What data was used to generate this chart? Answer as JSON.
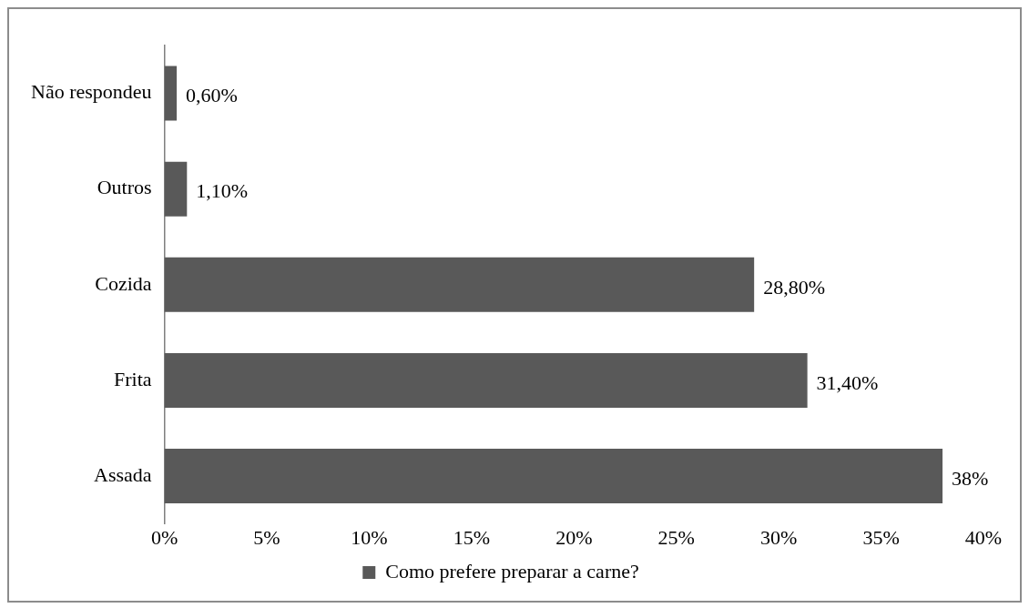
{
  "chart_data": {
    "type": "bar",
    "orientation": "horizontal",
    "categories": [
      "Não respondeu",
      "Outros",
      "Cozida",
      "Frita",
      "Assada"
    ],
    "series": [
      {
        "name": "Como prefere preparar a carne?",
        "color": "#595959",
        "values": [
          0.6,
          1.1,
          28.8,
          31.4,
          38
        ],
        "value_labels": [
          "0,60%",
          "1,10%",
          "28,80%",
          "31,40%",
          "38%"
        ]
      }
    ],
    "xlim": [
      0,
      40
    ],
    "xticks": [
      {
        "value": 0,
        "label": "0%"
      },
      {
        "value": 5,
        "label": "5%"
      },
      {
        "value": 10,
        "label": "10%"
      },
      {
        "value": 15,
        "label": "15%"
      },
      {
        "value": 20,
        "label": "20%"
      },
      {
        "value": 25,
        "label": "25%"
      },
      {
        "value": 30,
        "label": "30%"
      },
      {
        "value": 35,
        "label": "35%"
      },
      {
        "value": 40,
        "label": "40%"
      }
    ],
    "grid": false,
    "legend": "bottom"
  }
}
